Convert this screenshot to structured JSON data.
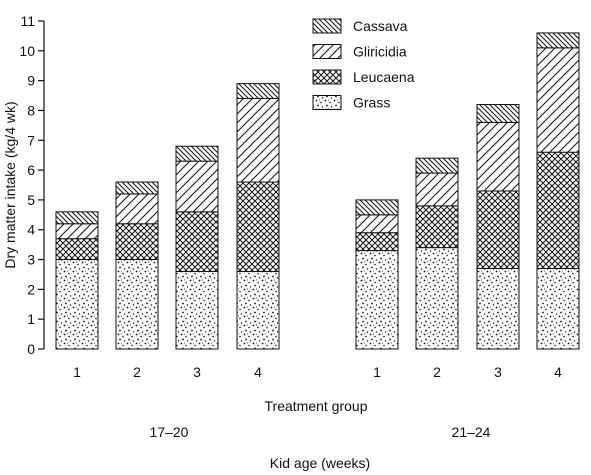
{
  "chart_data": {
    "type": "bar",
    "stacked": true,
    "ylabel": "Dry matter intake (kg/4 wk)",
    "xlabel": "Treatment group",
    "group_axis_title": "Kid age (weeks)",
    "ylim": [
      0,
      11
    ],
    "yticks": [
      0,
      1,
      2,
      3,
      4,
      5,
      6,
      7,
      8,
      9,
      10,
      11
    ],
    "groups": [
      {
        "name": "17–20",
        "categories": [
          "1",
          "2",
          "3",
          "4"
        ]
      },
      {
        "name": "21–24",
        "categories": [
          "1",
          "2",
          "3",
          "4"
        ]
      }
    ],
    "categories": [
      "1",
      "2",
      "3",
      "4",
      "1",
      "2",
      "3",
      "4"
    ],
    "series": [
      {
        "name": "Grass",
        "pattern": "dots",
        "values": [
          3.0,
          3.0,
          2.6,
          2.6,
          3.3,
          3.4,
          2.7,
          2.7
        ]
      },
      {
        "name": "Leucaena",
        "pattern": "crosshatch",
        "values": [
          0.7,
          1.2,
          2.0,
          3.0,
          0.6,
          1.4,
          2.6,
          3.9
        ]
      },
      {
        "name": "Gliricidia",
        "pattern": "diagonal-wide",
        "values": [
          0.5,
          1.0,
          1.7,
          2.8,
          0.6,
          1.1,
          2.3,
          3.5
        ]
      },
      {
        "name": "Cassava",
        "pattern": "diagonal-dense",
        "values": [
          0.4,
          0.4,
          0.5,
          0.5,
          0.5,
          0.5,
          0.6,
          0.5
        ]
      }
    ],
    "legend_order": [
      "Cassava",
      "Gliricidia",
      "Leucaena",
      "Grass"
    ],
    "legend_position": "top-right",
    "grid": false
  }
}
